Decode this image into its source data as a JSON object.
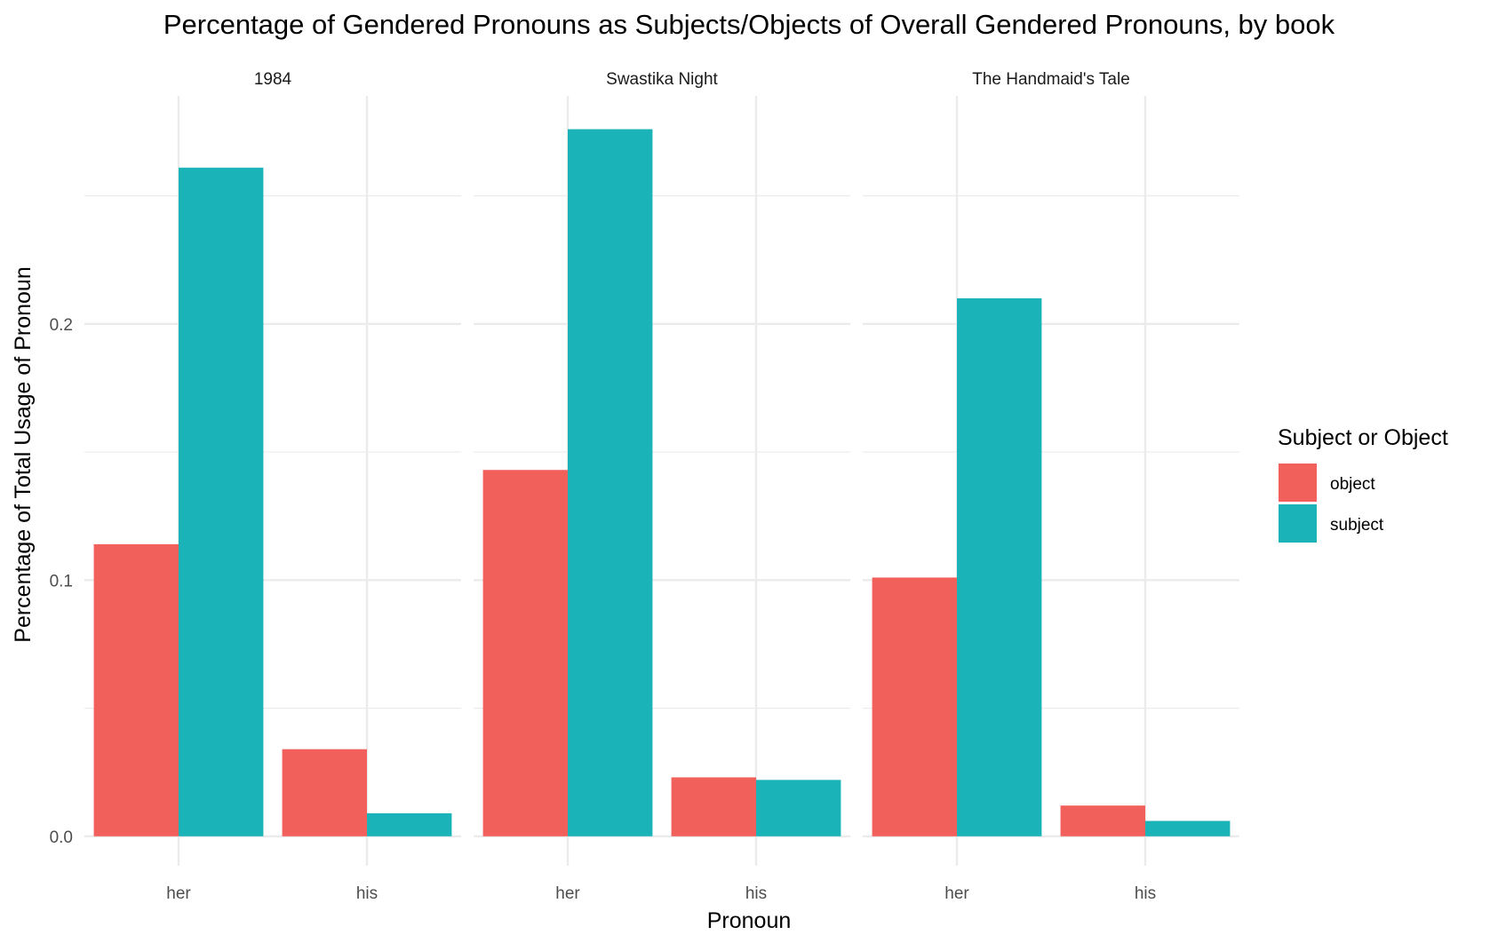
{
  "chart_data": {
    "type": "bar",
    "title": "Percentage of Gendered Pronouns as Subjects/Objects of Overall Gendered Pronouns, by book",
    "xlabel": "Pronoun",
    "ylabel": "Percentage of Total Usage of Pronoun",
    "ylim": [
      -0.0115,
      0.289
    ],
    "y_ticks": [
      0.0,
      0.1,
      0.2
    ],
    "y_tick_labels": [
      "0.0",
      "0.1",
      "0.2"
    ],
    "y_minor_ticks": [
      0.05,
      0.15,
      0.25
    ],
    "grid": true,
    "categories": [
      "her",
      "his"
    ],
    "legend": {
      "title": "Subject or Object",
      "position": "right",
      "entries": [
        {
          "label": "object",
          "color": "#F2605B"
        },
        {
          "label": "subject",
          "color": "#1AB3B7"
        }
      ]
    },
    "facets": [
      {
        "label": "1984",
        "series": [
          {
            "name": "object",
            "values": [
              0.114,
              0.034
            ]
          },
          {
            "name": "subject",
            "values": [
              0.261,
              0.009
            ]
          }
        ]
      },
      {
        "label": "Swastika Night",
        "series": [
          {
            "name": "object",
            "values": [
              0.143,
              0.023
            ]
          },
          {
            "name": "subject",
            "values": [
              0.276,
              0.022
            ]
          }
        ]
      },
      {
        "label": "The Handmaid's Tale",
        "series": [
          {
            "name": "object",
            "values": [
              0.101,
              0.012
            ]
          },
          {
            "name": "subject",
            "values": [
              0.21,
              0.006
            ]
          }
        ]
      }
    ]
  }
}
